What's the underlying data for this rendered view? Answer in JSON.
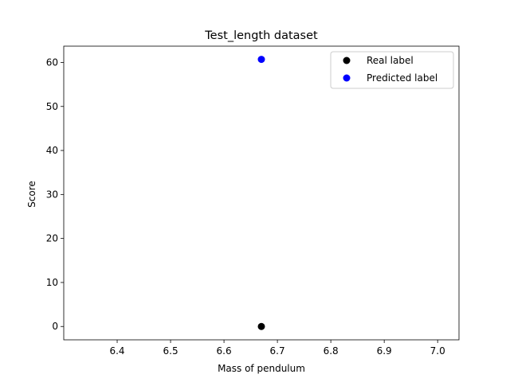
{
  "chart_data": {
    "type": "scatter",
    "title": "Test_length dataset",
    "xlabel": "Mass of pendulum",
    "ylabel": "Score",
    "xlim": [
      6.3,
      7.04
    ],
    "ylim": [
      -3.03,
      63.7
    ],
    "xticks": [
      6.4,
      6.5,
      6.6,
      6.7,
      6.8,
      6.9,
      7.0
    ],
    "xtick_labels": [
      "6.4",
      "6.5",
      "6.6",
      "6.7",
      "6.8",
      "6.9",
      "7.0"
    ],
    "yticks": [
      0,
      10,
      20,
      30,
      40,
      50,
      60
    ],
    "ytick_labels": [
      "0",
      "10",
      "20",
      "30",
      "40",
      "50",
      "60"
    ],
    "grid": false,
    "legend_position": "top-right",
    "series": [
      {
        "name": "Real label",
        "color": "#000000",
        "points": [
          {
            "x": 6.67,
            "y": 0.0
          }
        ]
      },
      {
        "name": "Predicted label",
        "color": "#0000ff",
        "points": [
          {
            "x": 6.67,
            "y": 60.7
          }
        ]
      }
    ]
  }
}
